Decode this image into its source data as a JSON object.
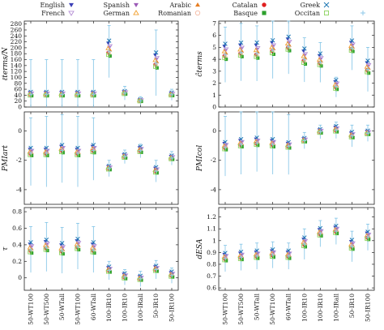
{
  "chart_data": {
    "type": "scatter",
    "categories": [
      "50-WT100",
      "50-WT500",
      "50-WTall",
      "50-WT100",
      "60-WTall",
      "100-IR10",
      "100-IR10",
      "100-IRall",
      "50-IR10",
      "50-IR100"
    ],
    "legend": [
      {
        "name": "English",
        "color": "#3b3fb6",
        "marker": "tri-down"
      },
      {
        "name": "Spanish",
        "color": "#9b59b6",
        "marker": "tri-down"
      },
      {
        "name": "Arabic",
        "color": "#e67e22",
        "marker": "tri-up"
      },
      {
        "name": "Catalan",
        "color": "#e02020",
        "marker": "circle"
      },
      {
        "name": "Greek",
        "color": "#1f77b4",
        "marker": "x"
      },
      {
        "name": "French",
        "color": "#b58fd6",
        "marker": "tri-down-open"
      },
      {
        "name": "German",
        "color": "#f0a030",
        "marker": "tri-up-open"
      },
      {
        "name": "Romanian",
        "color": "#f5b8a0",
        "marker": "circle-open"
      },
      {
        "name": "Basque",
        "color": "#2ca02c",
        "marker": "square"
      },
      {
        "name": "Occitan",
        "color": "#8dd35f",
        "marker": "square-open"
      },
      {
        "name": "",
        "color": "#8ec9e8",
        "marker": "plus"
      }
    ],
    "panels": [
      {
        "id": "terms-n",
        "ylabel": "ℓterms/N",
        "ylim": [
          0,
          290
        ],
        "yticks": [
          0,
          20,
          40,
          60,
          80,
          100,
          120,
          140,
          160,
          180,
          200,
          220,
          240,
          260,
          280
        ],
        "centers": [
          40,
          40,
          40,
          40,
          40,
          180,
          45,
          20,
          140,
          40
        ],
        "spread": [
          10,
          10,
          10,
          10,
          10,
          40,
          8,
          5,
          40,
          8
        ],
        "err": [
          120,
          120,
          120,
          120,
          120,
          95,
          25,
          15,
          120,
          20
        ]
      },
      {
        "id": "terms-c",
        "ylabel": "ĉterms",
        "ylim": [
          0,
          7.2
        ],
        "yticks": [
          0,
          1,
          2,
          3,
          4,
          5,
          6,
          7
        ],
        "centers": [
          4.2,
          4.4,
          4.3,
          4.6,
          4.9,
          3.8,
          3.6,
          1.6,
          4.8,
          3.0
        ],
        "spread": [
          1.0,
          0.9,
          1.0,
          0.9,
          0.9,
          1.0,
          0.8,
          0.6,
          0.7,
          0.8
        ],
        "err": [
          2.5,
          2.6,
          2.5,
          2.6,
          2.5,
          2.0,
          1.8,
          0.9,
          2.0,
          2.0
        ]
      },
      {
        "id": "pmi-art",
        "ylabel": "PMIart",
        "ylim": [
          -5,
          1.3
        ],
        "yticks": [
          -4,
          -2,
          0
        ],
        "centers": [
          -1.6,
          -1.6,
          -1.4,
          -1.6,
          -1.4,
          -2.6,
          -1.8,
          -1.4,
          -2.8,
          -1.9
        ],
        "spread": [
          0.4,
          0.4,
          0.4,
          0.4,
          0.4,
          0.2,
          0.2,
          0.3,
          0.3,
          0.2
        ],
        "err": [
          2.5,
          2.6,
          2.5,
          2.6,
          2.3,
          0.6,
          0.5,
          0.5,
          0.8,
          0.5
        ]
      },
      {
        "id": "pmi-col",
        "ylabel": "PMIcol",
        "ylim": [
          -5,
          1.3
        ],
        "yticks": [
          -4,
          -2,
          0
        ],
        "centers": [
          -1.2,
          -1.0,
          -0.9,
          -1.0,
          -1.1,
          -0.7,
          -0.1,
          0.0,
          -0.4,
          -0.2
        ],
        "spread": [
          0.4,
          0.4,
          0.4,
          0.4,
          0.3,
          0.2,
          0.2,
          0.3,
          0.3,
          0.2
        ],
        "err": [
          2.2,
          2.3,
          2.2,
          2.3,
          2.2,
          0.6,
          0.5,
          0.6,
          0.8,
          0.6
        ]
      },
      {
        "id": "tau",
        "ylabel": "τ",
        "ylim": [
          -0.15,
          0.85
        ],
        "yticks": [
          0,
          0.2,
          0.4,
          0.6,
          0.8
        ],
        "centers": [
          0.32,
          0.35,
          0.31,
          0.36,
          0.32,
          0.08,
          0.0,
          -0.02,
          0.09,
          0.02
        ],
        "spread": [
          0.1,
          0.1,
          0.1,
          0.1,
          0.1,
          0.05,
          0.05,
          0.04,
          0.05,
          0.05
        ],
        "err": [
          0.3,
          0.32,
          0.3,
          0.3,
          0.3,
          0.12,
          0.1,
          0.1,
          0.12,
          0.1
        ]
      },
      {
        "id": "d-esa",
        "ylabel": "dESA",
        "ylim": [
          0.58,
          1.28
        ],
        "yticks": [
          0.6,
          0.7,
          0.8,
          0.9,
          1.0,
          1.1,
          1.2
        ],
        "centers": [
          0.84,
          0.85,
          0.86,
          0.87,
          0.86,
          0.96,
          1.05,
          1.07,
          0.94,
          1.02
        ],
        "spread": [
          0.05,
          0.05,
          0.05,
          0.05,
          0.05,
          0.06,
          0.05,
          0.05,
          0.06,
          0.05
        ],
        "err": [
          0.12,
          0.12,
          0.12,
          0.12,
          0.12,
          0.14,
          0.12,
          0.12,
          0.14,
          0.12
        ]
      }
    ]
  }
}
